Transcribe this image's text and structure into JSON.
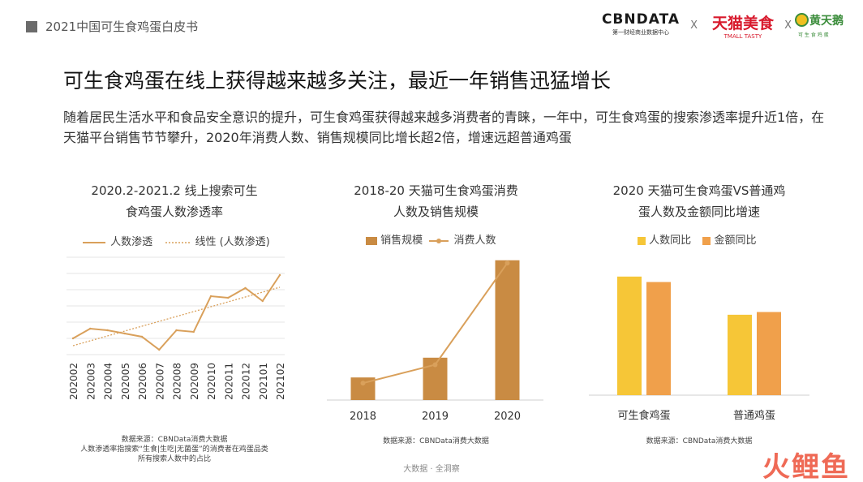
{
  "header": {
    "doc_title": "2021中国可生食鸡蛋白皮书",
    "logo_cbn": "CBNDATA",
    "logo_cbn_sub": "第一财经商业数据中心",
    "sep": "X",
    "logo_tmall": "天猫美食",
    "logo_tmall_sub": "TMALL TASTY",
    "logo_hty": "黄天鹅",
    "logo_hty_sub": "可 生 食 鸡 蛋"
  },
  "headline": "可生食鸡蛋在线上获得越来越多关注，最近一年销售迅猛增长",
  "description": "随着居民生活水平和食品安全意识的提升，可生食鸡蛋获得越来越多消费者的青睐，一年中，可生食鸡蛋的搜索渗透率提升近1倍，在天猫平台销售节节攀升，2020年消费人数、销售规模同比增长超2倍，增速远超普通鸡蛋",
  "footer": "大数据 · 全洞察",
  "watermark": "火鲤鱼",
  "colors": {
    "line": "#D9A05B",
    "bar": "#C98B43",
    "yellow": "#F6C637",
    "orange": "#F0A04B",
    "grid": "#E4E4E4"
  },
  "chart_data": [
    {
      "type": "line",
      "title_line1": "2020.2-2021.2 线上搜索可生",
      "title_line2": "食鸡蛋人数渗透率",
      "legend": [
        "人数渗透",
        "线性 (人数渗透)"
      ],
      "x": [
        "202002",
        "202003",
        "202004",
        "202005",
        "202006",
        "202007",
        "202008",
        "202009",
        "202010",
        "202011",
        "202012",
        "202101",
        "202102"
      ],
      "series": [
        {
          "name": "人数渗透",
          "values": [
            1.0,
            1.6,
            1.5,
            1.3,
            1.1,
            0.3,
            1.5,
            1.4,
            3.6,
            3.5,
            4.1,
            3.3,
            4.9
          ]
        }
      ],
      "trend": [
        0.55,
        4.15
      ],
      "ylim": [
        0,
        6
      ],
      "grid": true,
      "source_lines": [
        "数据来源：CBNData消费大数据",
        "人数渗透率指搜索“生食|生吃|无菌蛋”的消费者在鸡蛋品类",
        "所有搜索人数中的占比"
      ]
    },
    {
      "type": "bar",
      "title_line1": "2018-20 天猫可生食鸡蛋消费",
      "title_line2": "人数及销售规模",
      "legend": [
        "销售规模",
        "消费人数"
      ],
      "categories": [
        "2018",
        "2019",
        "2020"
      ],
      "series": [
        {
          "name": "销售规模",
          "values": [
            1.6,
            3.0,
            9.9
          ]
        },
        {
          "name": "消费人数",
          "values": [
            1.2,
            2.5,
            9.7
          ]
        }
      ],
      "ylim": [
        0,
        10
      ],
      "source_lines": [
        "数据来源：CBNData消费大数据"
      ]
    },
    {
      "type": "bar",
      "title_line1": "2020 天猫可生食鸡蛋VS普通鸡",
      "title_line2": "蛋人数及金额同比增速",
      "legend": [
        "人数同比",
        "金额同比"
      ],
      "categories": [
        "可生食鸡蛋",
        "普通鸡蛋"
      ],
      "series": [
        {
          "name": "人数同比",
          "values": [
            8.7,
            5.9
          ]
        },
        {
          "name": "金额同比",
          "values": [
            8.3,
            6.1
          ]
        }
      ],
      "ylim": [
        0,
        10
      ],
      "source_lines": [
        "数据来源：CBNData消费大数据"
      ]
    }
  ]
}
